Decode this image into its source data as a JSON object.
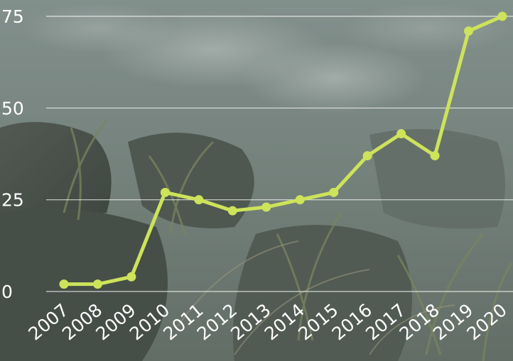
{
  "chart_data": {
    "type": "line",
    "title": "",
    "xlabel": "",
    "ylabel": "",
    "categories": [
      "2007",
      "2008",
      "2009",
      "2010",
      "2011",
      "2012",
      "2013",
      "2014",
      "2015",
      "2016",
      "2017",
      "2018",
      "2019",
      "2020"
    ],
    "series": [
      {
        "values": [
          2,
          2,
          4,
          27,
          25,
          22,
          23,
          25,
          27,
          37,
          43,
          37,
          71,
          75
        ]
      }
    ],
    "yticks": [
      0,
      25,
      50,
      75
    ],
    "ylim": [
      0,
      75
    ],
    "grid": true,
    "legend": "none",
    "line_color": "#cde35a",
    "grid_color": "#ffffff",
    "tick_color": "#ffffff"
  },
  "background": {
    "icon": "rocky-stream-grass-photo"
  }
}
